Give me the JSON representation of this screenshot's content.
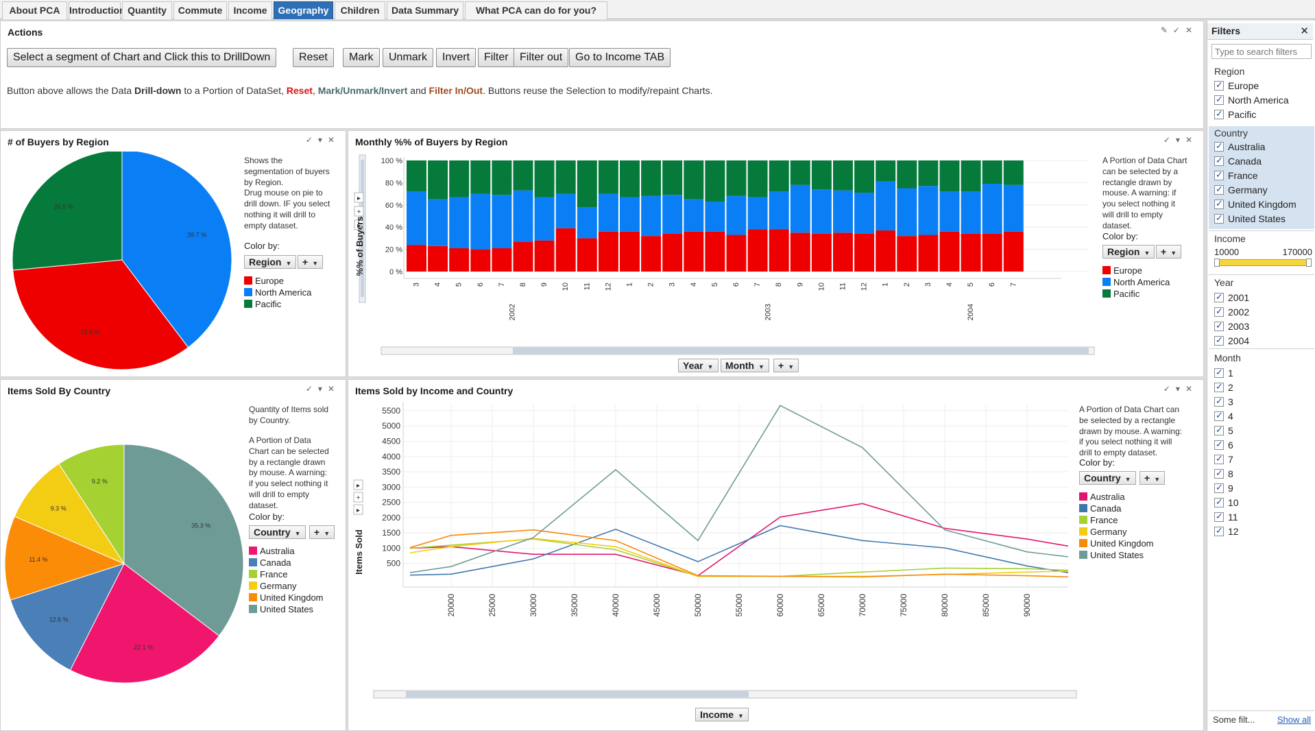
{
  "tabs": [
    "About PCA",
    "Introduction",
    "Quantity",
    "Commute",
    "Income",
    "Geography",
    "Children",
    "Data Summary",
    "What PCA can do for you?"
  ],
  "active_tab": "Geography",
  "actions": {
    "title": "Actions",
    "buttons": [
      "Select a segment of Chart and Click this to DrillDown",
      "Reset",
      "Mark",
      "Unmark",
      "Invert",
      "Filter",
      "Filter out",
      "Go to Income TAB"
    ],
    "desc": {
      "p1": "Button above allows the Data ",
      "p2": "Drill-down",
      "p3": " to a Portion of DataSet, ",
      "p4": "Reset",
      "p5": ", ",
      "p6": "Mark/Unmark/Invert",
      "p7": " and ",
      "p8": "Filter In/Out",
      "p9": ". Buttons reuse the Selection to modify/repaint Charts."
    },
    "colors": {
      "reset": "#e01010",
      "mark": "#4a6a6a",
      "filter": "#a04a1a"
    }
  },
  "buyers_pie": {
    "title": "# of Buyers by Region",
    "desc_lines": [
      "Shows the",
      "segmentation of buyers",
      "by Region.",
      "Drug mouse on pie to",
      "drill down. IF you select",
      "nothing it will drill to",
      "empty dataset."
    ],
    "color_by_label": "Color by:",
    "dropdown": "Region",
    "plus": "+",
    "legend": [
      {
        "label": "Europe",
        "color": "#ee0000"
      },
      {
        "label": "North America",
        "color": "#0a7ff5"
      },
      {
        "label": "Pacific",
        "color": "#057a3a"
      }
    ],
    "chart_data": {
      "type": "pie",
      "slices": [
        {
          "label": "North America",
          "value": 39.7,
          "text": "39.7 %",
          "color": "#0a7ff5"
        },
        {
          "label": "Europe",
          "value": 33.8,
          "text": "33.8 %",
          "color": "#ee0000"
        },
        {
          "label": "Pacific",
          "value": 26.5,
          "text": "26.5 %",
          "color": "#057a3a"
        }
      ]
    }
  },
  "monthly": {
    "title": "Monthly %% of Buyers by Region",
    "ylabel": "%% of Buyers",
    "desc_lines": [
      "A Portion of Data Chart",
      "can be selected by a",
      "rectangle drawn by",
      "mouse. A warning: if",
      "you select nothing it",
      "will drill to empty",
      "dataset."
    ],
    "color_by_label": "Color by:",
    "dropdown": "Region",
    "plus": "+",
    "legend": [
      {
        "label": "Europe",
        "color": "#ee0000"
      },
      {
        "label": "North America",
        "color": "#0a7ff5"
      },
      {
        "label": "Pacific",
        "color": "#057a3a"
      }
    ],
    "axis_dropdowns": [
      "Year",
      "Month",
      "+"
    ],
    "chart_data": {
      "type": "bar",
      "stacked": true,
      "ylim": [
        0,
        100
      ],
      "yticks": [
        "100 %",
        "80 %",
        "60 %",
        "40 %",
        "20 %",
        "0 %"
      ],
      "months": [
        "3",
        "4",
        "5",
        "6",
        "7",
        "8",
        "9",
        "10",
        "11",
        "12",
        "1",
        "2",
        "3",
        "4",
        "5",
        "6",
        "7",
        "8",
        "9",
        "10",
        "11",
        "12",
        "1",
        "2",
        "3",
        "4",
        "5",
        "6",
        "7"
      ],
      "years": [
        {
          "label": "2002",
          "at": 4.5
        },
        {
          "label": "2003",
          "at": 16.5
        },
        {
          "label": "2004",
          "at": 26
        }
      ],
      "series": [
        {
          "name": "Europe",
          "color": "#ee0000",
          "values": [
            24,
            23,
            21,
            20,
            21,
            27,
            28,
            39,
            30,
            36,
            36,
            32,
            34,
            36,
            36,
            33,
            38,
            38,
            35,
            34,
            35,
            34,
            37,
            32,
            33,
            36,
            34,
            34,
            36
          ]
        },
        {
          "name": "North America",
          "color": "#0a7ff5",
          "values": [
            48,
            42,
            46,
            50,
            48,
            46,
            39,
            31,
            28,
            34,
            31,
            36,
            35,
            29,
            27,
            35,
            29,
            34,
            43,
            40,
            38,
            37,
            44,
            43,
            44,
            36,
            38,
            45,
            42
          ]
        },
        {
          "name": "Pacific",
          "color": "#057a3a",
          "values": [
            28,
            35,
            33,
            30,
            31,
            27,
            33,
            30,
            42,
            30,
            33,
            32,
            31,
            35,
            37,
            32,
            33,
            28,
            22,
            26,
            27,
            29,
            19,
            25,
            23,
            28,
            28,
            21,
            22
          ]
        }
      ]
    }
  },
  "items_pie": {
    "title": "Items Sold By Country",
    "desc_a": [
      "Quantity of Items sold",
      "by Country."
    ],
    "desc_b": [
      "A Portion of Data",
      "Chart can be selected",
      "by a rectangle drawn",
      "by mouse. A warning:",
      "if you select nothing it",
      "will drill to empty",
      "dataset."
    ],
    "color_by_label": "Color by:",
    "dropdown": "Country",
    "plus": "+",
    "legend": [
      {
        "label": "Australia",
        "color": "#f0166d"
      },
      {
        "label": "Canada",
        "color": "#4a7fb8"
      },
      {
        "label": "France",
        "color": "#a5d132"
      },
      {
        "label": "Germany",
        "color": "#f3cc14"
      },
      {
        "label": "United Kingdom",
        "color": "#fb8c07"
      },
      {
        "label": "United States",
        "color": "#6e9b95"
      }
    ],
    "chart_data": {
      "type": "pie",
      "slices": [
        {
          "label": "United States",
          "value": 35.3,
          "text": "35.3 %",
          "color": "#6e9b95"
        },
        {
          "label": "Australia",
          "value": 22.1,
          "text": "22.1 %",
          "color": "#f0166d"
        },
        {
          "label": "Canada",
          "value": 12.6,
          "text": "12.6 %",
          "color": "#4a7fb8"
        },
        {
          "label": "United Kingdom",
          "value": 11.4,
          "text": "11.4 %",
          "color": "#fb8c07"
        },
        {
          "label": "Germany",
          "value": 9.3,
          "text": "9.3 %",
          "color": "#f3cc14"
        },
        {
          "label": "France",
          "value": 9.2,
          "text": "9.2 %",
          "color": "#a5d132"
        }
      ]
    }
  },
  "income_chart": {
    "title": "Items Sold by Income and Country",
    "ylabel": "Items Sold",
    "desc_lines": [
      "A Portion of Data Chart can",
      "be selected by a rectangle",
      "drawn by mouse. A warning:",
      "if you select nothing it will",
      "drill to empty dataset."
    ],
    "color_by_label": "Color by:",
    "dropdown": "Country",
    "plus": "+",
    "axis_dropdown": "Income",
    "legend": [
      {
        "label": "Australia",
        "color": "#e0166d"
      },
      {
        "label": "Canada",
        "color": "#3f77ad"
      },
      {
        "label": "France",
        "color": "#a5d132"
      },
      {
        "label": "Germany",
        "color": "#f3cc14"
      },
      {
        "label": "United Kingdom",
        "color": "#f58a0a"
      },
      {
        "label": "United States",
        "color": "#6e9b95"
      }
    ],
    "chart_data": {
      "type": "line",
      "ylim": [
        0,
        5700
      ],
      "yticks": [
        500,
        1000,
        1500,
        2000,
        2500,
        3000,
        3500,
        4000,
        4500,
        5000,
        5500
      ],
      "xticks": [
        20000,
        25000,
        30000,
        35000,
        40000,
        45000,
        50000,
        55000,
        60000,
        65000,
        70000,
        75000,
        80000,
        85000,
        90000
      ],
      "x": [
        15000,
        20000,
        30000,
        40000,
        50000,
        60000,
        70000,
        80000,
        90000,
        95000
      ],
      "series": [
        {
          "name": "Australia",
          "color": "#e0166d",
          "values": [
            1000,
            1050,
            800,
            800,
            100,
            2020,
            2460,
            1650,
            1300,
            1070
          ]
        },
        {
          "name": "Canada",
          "color": "#3f77ad",
          "values": [
            120,
            150,
            650,
            1620,
            560,
            1740,
            1250,
            1010,
            420,
            200
          ]
        },
        {
          "name": "France",
          "color": "#a5d132",
          "values": [
            1000,
            1100,
            1300,
            950,
            80,
            80,
            220,
            350,
            330,
            280
          ]
        },
        {
          "name": "Germany",
          "color": "#f3cc14",
          "values": [
            850,
            1050,
            1320,
            1050,
            80,
            80,
            80,
            140,
            220,
            250
          ]
        },
        {
          "name": "United Kingdom",
          "color": "#f58a0a",
          "values": [
            1020,
            1420,
            1600,
            1250,
            100,
            80,
            60,
            150,
            100,
            60
          ]
        },
        {
          "name": "United States",
          "color": "#6e9b95",
          "values": [
            200,
            400,
            1350,
            3570,
            1250,
            5670,
            4290,
            1600,
            880,
            720
          ]
        }
      ]
    }
  },
  "filters": {
    "title": "Filters",
    "search_placeholder": "Type to search filters",
    "region_title": "Region",
    "region": [
      "Europe",
      "North America",
      "Pacific"
    ],
    "country_title": "Country",
    "country": [
      "Australia",
      "Canada",
      "France",
      "Germany",
      "United Kingdom",
      "United States"
    ],
    "income_title": "Income",
    "income_min": "10000",
    "income_max": "170000",
    "year_title": "Year",
    "years": [
      "2001",
      "2002",
      "2003",
      "2004"
    ],
    "month_title": "Month",
    "months": [
      "1",
      "2",
      "3",
      "4",
      "5",
      "6",
      "7",
      "8",
      "9",
      "10",
      "11",
      "12"
    ],
    "footer": "Some filt...",
    "show_all": "Show all"
  }
}
